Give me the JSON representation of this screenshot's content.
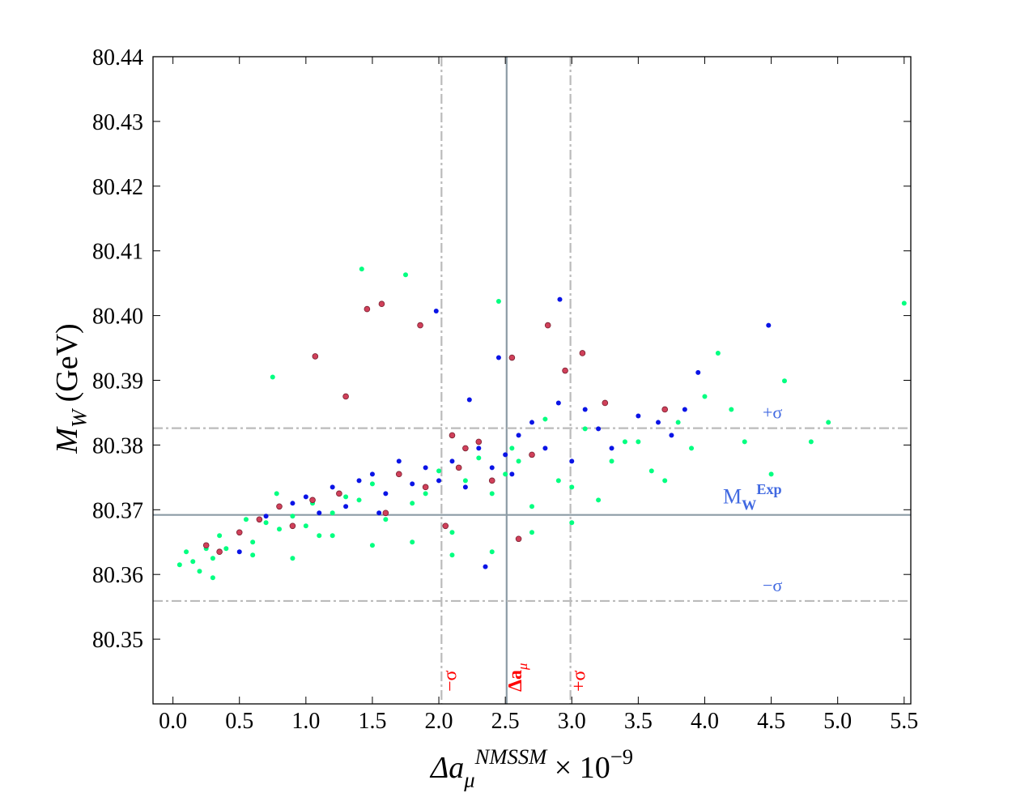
{
  "chart_data": {
    "type": "scatter",
    "xlabel": [
      {
        "text": "Δa",
        "style": "italic"
      },
      {
        "text": "μ",
        "shift": "sub",
        "style": "italic"
      },
      {
        "text": "NMSSM",
        "shift": "sup",
        "style": "italic"
      },
      {
        "text": " × 10"
      },
      {
        "text": "−9",
        "shift": "sup"
      }
    ],
    "ylabel": [
      {
        "text": "M",
        "style": "italic"
      },
      {
        "text": "W",
        "shift": "sub",
        "style": "italic"
      },
      {
        "text": "  (GeV)"
      }
    ],
    "xlim": [
      -0.15,
      5.55
    ],
    "ylim": [
      80.34,
      80.44
    ],
    "xticks": [
      {
        "value": 0,
        "label": "0.0"
      },
      0.5,
      {
        "value": 1,
        "label": "1.0"
      },
      1.5,
      {
        "value": 2,
        "label": "2.0"
      },
      2.5,
      {
        "value": 3,
        "label": "3.0"
      },
      3.5,
      {
        "value": 4,
        "label": "4.0"
      },
      4.5,
      {
        "value": 5,
        "label": "5.0"
      },
      5.5
    ],
    "yticks": [
      80.35,
      80.36,
      80.37,
      80.38,
      80.39,
      {
        "value": 80.4,
        "label": "80.40"
      },
      80.41,
      80.42,
      80.43,
      80.44
    ],
    "x_ref_lines": {
      "label_color": "#ff0000",
      "lines": [
        {
          "value": 2.02,
          "style": "dashdot",
          "color": "#bbbbbb",
          "label": [
            {
              "text": "−σ"
            }
          ]
        },
        {
          "value": 2.51,
          "style": "solid",
          "color": "#8c9ba5",
          "label": [
            {
              "text": "Δa",
              "style": "bold"
            },
            {
              "text": "μ",
              "shift": "sub",
              "style": "italic"
            }
          ]
        },
        {
          "value": 2.99,
          "style": "dashdot",
          "color": "#bbbbbb",
          "label": [
            {
              "text": "+σ"
            }
          ]
        }
      ]
    },
    "y_ref_lines": {
      "label_color": "#4169e1",
      "lines": [
        {
          "value": 80.3826,
          "style": "dashdot",
          "color": "#bbbbbb",
          "label": [
            {
              "text": "+σ"
            }
          ]
        },
        {
          "value": 80.3692,
          "style": "solid",
          "color": "#8c9ba5",
          "label": [
            {
              "text": "M"
            },
            {
              "text": "W",
              "shift": "sub",
              "style": "bold"
            },
            {
              "text": "Exp",
              "shift": "sup",
              "style": "bold"
            }
          ]
        },
        {
          "value": 80.3559,
          "style": "dashdot",
          "color": "#bbbbbb",
          "label": [
            {
              "text": "−σ"
            }
          ]
        }
      ]
    },
    "series": [
      {
        "color": "#00ff80",
        "x": [
          0.05,
          0.1,
          0.15,
          0.2,
          0.25,
          0.3,
          0.35,
          0.4,
          0.5,
          0.55,
          0.6,
          0.7,
          0.75,
          0.8,
          0.9,
          1.0,
          1.05,
          1.1,
          1.2,
          1.3,
          1.4,
          1.42,
          1.5,
          1.6,
          1.7,
          1.75,
          1.8,
          1.9,
          2.0,
          2.1,
          2.2,
          2.3,
          2.4,
          2.45,
          2.5,
          2.6,
          2.7,
          2.8,
          2.9,
          3.0,
          3.1,
          3.2,
          3.3,
          3.4,
          3.5,
          3.6,
          3.7,
          3.8,
          3.9,
          4.0,
          4.1,
          4.2,
          4.3,
          4.5,
          4.6,
          4.8,
          4.93,
          5.5,
          0.3,
          0.6,
          0.9,
          1.2,
          1.5,
          1.8,
          2.1,
          2.4,
          2.7,
          3.0,
          0.78,
          2.55
        ],
        "values": [
          80.3615,
          80.3635,
          80.362,
          80.3605,
          80.364,
          80.3625,
          80.366,
          80.364,
          80.3665,
          80.3685,
          80.365,
          80.368,
          80.3905,
          80.367,
          80.369,
          80.3675,
          80.371,
          80.366,
          80.3695,
          80.372,
          80.3715,
          80.4072,
          80.374,
          80.3685,
          80.3755,
          80.4063,
          80.371,
          80.3725,
          80.376,
          80.3665,
          80.3745,
          80.378,
          80.3725,
          80.4022,
          80.3755,
          80.3775,
          80.3705,
          80.384,
          80.3745,
          80.3735,
          80.3825,
          80.3715,
          80.3775,
          80.3805,
          80.3805,
          80.376,
          80.3745,
          80.3835,
          80.3795,
          80.3875,
          80.3942,
          80.3855,
          80.3805,
          80.3755,
          80.3899,
          80.3805,
          80.3835,
          80.4019,
          80.3595,
          80.363,
          80.3625,
          80.366,
          80.3645,
          80.365,
          80.363,
          80.3635,
          80.3665,
          80.368,
          80.3725,
          80.3795
        ]
      },
      {
        "color": "#0a14e6",
        "x": [
          0.5,
          0.7,
          0.9,
          1.0,
          1.1,
          1.2,
          1.3,
          1.4,
          1.5,
          1.6,
          1.7,
          1.8,
          1.9,
          1.98,
          2.0,
          2.1,
          2.2,
          2.3,
          2.35,
          2.4,
          2.45,
          2.5,
          2.55,
          2.6,
          2.7,
          2.8,
          2.9,
          2.91,
          3.0,
          3.1,
          3.2,
          3.3,
          3.5,
          3.65,
          3.75,
          3.85,
          3.95,
          4.48,
          2.23,
          1.55
        ],
        "values": [
          80.3635,
          80.369,
          80.371,
          80.372,
          80.3695,
          80.3735,
          80.3705,
          80.3745,
          80.3755,
          80.3725,
          80.3775,
          80.374,
          80.3765,
          80.4007,
          80.3745,
          80.3775,
          80.3735,
          80.3795,
          80.3612,
          80.3765,
          80.3935,
          80.3785,
          80.3755,
          80.3815,
          80.3835,
          80.3795,
          80.3865,
          80.4025,
          80.3775,
          80.3855,
          80.3825,
          80.3795,
          80.3845,
          80.3835,
          80.3815,
          80.3855,
          80.3912,
          80.3985,
          80.387,
          80.3695
        ]
      },
      {
        "color": "#d0405a",
        "x": [
          0.25,
          0.35,
          0.5,
          0.65,
          0.8,
          0.9,
          1.07,
          1.05,
          1.25,
          1.3,
          1.46,
          1.57,
          1.7,
          1.86,
          1.9,
          2.05,
          2.15,
          2.2,
          2.3,
          2.4,
          2.55,
          2.6,
          2.7,
          2.82,
          2.95,
          3.08,
          3.25,
          3.7,
          2.1,
          1.6
        ],
        "values": [
          80.3645,
          80.3635,
          80.3665,
          80.3685,
          80.3705,
          80.3675,
          80.3937,
          80.3715,
          80.3725,
          80.3875,
          80.401,
          80.4018,
          80.3755,
          80.3985,
          80.3735,
          80.3675,
          80.3765,
          80.3795,
          80.3805,
          80.3745,
          80.3935,
          80.3655,
          80.3785,
          80.3985,
          80.3915,
          80.3942,
          80.3865,
          80.3855,
          80.3815,
          80.3695
        ]
      }
    ]
  }
}
